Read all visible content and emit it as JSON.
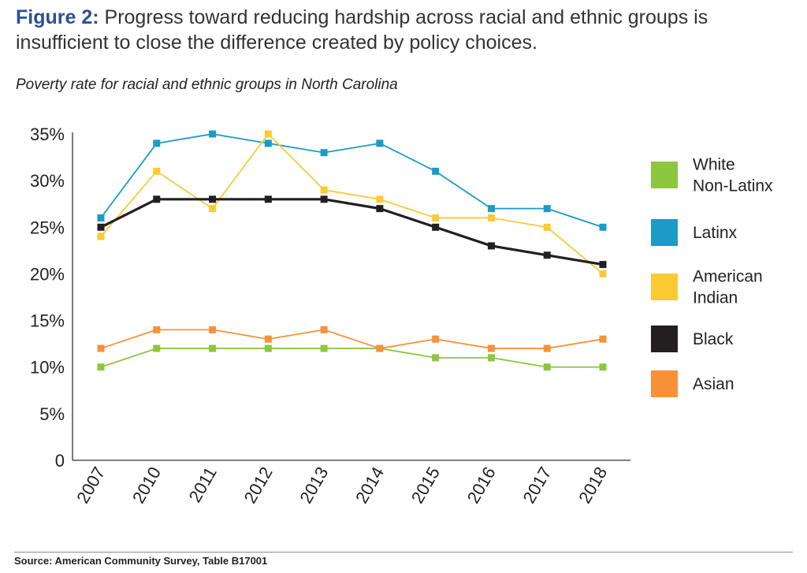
{
  "header": {
    "figure_label": "Figure 2:",
    "title": "Progress toward reducing hardship across racial and ethnic groups is insufficient to close the difference created by policy choices."
  },
  "chart_data": {
    "type": "line",
    "title": "Poverty rate for racial and ethnic groups in North Carolina",
    "xlabel": "",
    "ylabel": "",
    "categories": [
      "2007",
      "2010",
      "2011",
      "2012",
      "2013",
      "2014",
      "2015",
      "2016",
      "2017",
      "2018"
    ],
    "y_ticks": [
      "0",
      "5%",
      "10%",
      "15%",
      "20%",
      "25%",
      "30%",
      "35%"
    ],
    "y_tick_values": [
      0,
      5,
      10,
      15,
      20,
      25,
      30,
      35
    ],
    "ylim": [
      0,
      35
    ],
    "grid": false,
    "legend_position": "right",
    "series": [
      {
        "name": "White Non-Latinx",
        "legend_lines": [
          "White",
          "Non-Latinx"
        ],
        "color": "#8dc63f",
        "values": [
          10,
          12,
          12,
          12,
          12,
          12,
          11,
          11,
          10,
          10
        ]
      },
      {
        "name": "Latinx",
        "legend_lines": [
          "Latinx"
        ],
        "color": "#1b9bc8",
        "values": [
          26,
          34,
          35,
          34,
          33,
          34,
          31,
          27,
          27,
          25
        ]
      },
      {
        "name": "American Indian",
        "legend_lines": [
          "American",
          "Indian"
        ],
        "color": "#fbc934",
        "values": [
          24,
          31,
          27,
          35,
          29,
          28,
          26,
          26,
          25,
          20
        ]
      },
      {
        "name": "Black",
        "legend_lines": [
          "Black"
        ],
        "color": "#231f20",
        "values": [
          25,
          28,
          28,
          28,
          28,
          27,
          25,
          23,
          22,
          21
        ]
      },
      {
        "name": "Asian",
        "legend_lines": [
          "Asian"
        ],
        "color": "#f7923a",
        "values": [
          12,
          14,
          14,
          13,
          14,
          12,
          13,
          12,
          12,
          13
        ]
      }
    ]
  },
  "footer": {
    "source": "Source: American Community Survey, Table B17001"
  }
}
